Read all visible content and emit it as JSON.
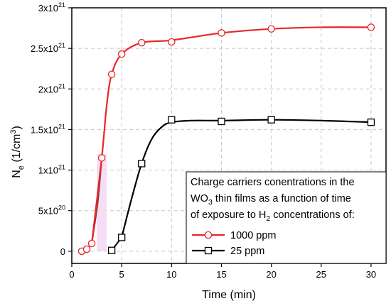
{
  "chart_data": {
    "type": "line",
    "xlabel": "Time (min)",
    "ylabel": {
      "base": "N",
      "sub": "e",
      "unit_open": " (1/cm",
      "unit_sup": "3",
      "unit_close": ")"
    },
    "xlim": [
      0,
      31.5
    ],
    "ylim": [
      -1.5e+20,
      3e+21
    ],
    "x_ticks": [
      0,
      5,
      10,
      15,
      20,
      25,
      30
    ],
    "x_tick_labels": [
      "0",
      "5",
      "10",
      "15",
      "20",
      "25",
      "30"
    ],
    "y_ticks": [
      {
        "value": 0,
        "mantissa": "0",
        "exp": ""
      },
      {
        "value": 5e+20,
        "mantissa": "5x10",
        "exp": "20"
      },
      {
        "value": 1e+21,
        "mantissa": "1x10",
        "exp": "21"
      },
      {
        "value": 1.5e+21,
        "mantissa": "1.5x10",
        "exp": "21"
      },
      {
        "value": 2e+21,
        "mantissa": "2x10",
        "exp": "21"
      },
      {
        "value": 2.5e+21,
        "mantissa": "2.5x10",
        "exp": "21"
      },
      {
        "value": 3e+21,
        "mantissa": "3x10",
        "exp": "21"
      }
    ],
    "grid": true,
    "legend_placement": "bottom-right",
    "legend_title_lines": [
      {
        "text": "Charge carriers conentrations in the"
      },
      {
        "pre": "WO",
        "sub": "3",
        "post": " thin films as a function of time"
      },
      {
        "pre": "of exposure to H",
        "sub": "2",
        "post": " concentrations of:"
      }
    ],
    "series": [
      {
        "name": "1000 ppm",
        "color": "#e8262b",
        "marker": "circle",
        "x": [
          1,
          1.5,
          2,
          3,
          4,
          5,
          7,
          10,
          15,
          20,
          30
        ],
        "y": [
          0,
          2.5e+19,
          9.5e+19,
          1.15e+21,
          2.18e+21,
          2.43e+21,
          2.57e+21,
          2.58e+21,
          2.69e+21,
          2.74e+21,
          2.76e+21
        ]
      },
      {
        "name": "25 ppm",
        "color": "#000000",
        "marker": "square",
        "x": [
          4,
          5,
          7,
          10,
          15,
          20,
          30
        ],
        "y": [
          1e+19,
          1.7e+20,
          1.08e+21,
          1.62e+21,
          1.6e+21,
          1.62e+21,
          1.59e+21
        ]
      }
    ],
    "fit_curves": [
      {
        "series": "1000 ppm",
        "color": "#e8262b",
        "points": [
          [
            2,
            9.5e+19
          ],
          [
            3,
            1.15e+21
          ],
          [
            3.5,
            1.8e+21
          ],
          [
            4,
            2.18e+21
          ],
          [
            5,
            2.43e+21
          ],
          [
            7,
            2.57e+21
          ],
          [
            10,
            2.6e+21
          ],
          [
            15,
            2.69e+21
          ],
          [
            20,
            2.74e+21
          ],
          [
            25,
            2.76e+21
          ],
          [
            30,
            2.76e+21
          ]
        ]
      },
      {
        "series": "25 ppm",
        "color": "#000000",
        "points": [
          [
            5,
            1.7e+20
          ],
          [
            6,
            6.5e+20
          ],
          [
            7,
            1.08e+21
          ],
          [
            8,
            1.38e+21
          ],
          [
            9,
            1.53e+21
          ],
          [
            10,
            1.59e+21
          ],
          [
            12,
            1.61e+21
          ],
          [
            15,
            1.61e+21
          ],
          [
            20,
            1.62e+21
          ],
          [
            25,
            1.61e+21
          ],
          [
            30,
            1.59e+21
          ]
        ]
      }
    ],
    "transition_segments": [
      {
        "color": "#8b3a2c",
        "points": [
          [
            2,
            9.5e+19
          ],
          [
            2.6,
            6e+20
          ],
          [
            3,
            1.15e+21
          ]
        ]
      },
      {
        "color": "#000000",
        "points": [
          [
            4,
            1e+19
          ],
          [
            5,
            1.7e+20
          ]
        ]
      }
    ],
    "highlight_band": {
      "x": [
        2.5,
        3.5
      ],
      "y": [
        0,
        1.2e+21
      ],
      "color": "#f2d6f2"
    }
  }
}
